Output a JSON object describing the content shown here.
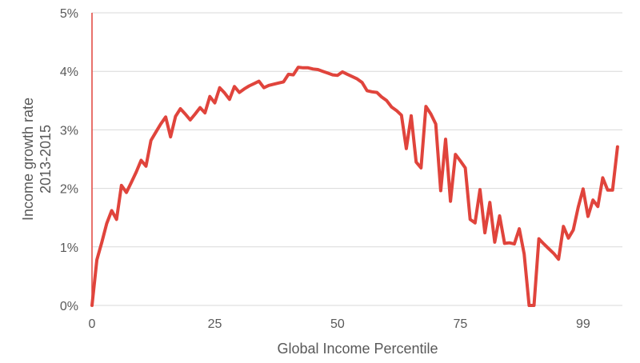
{
  "chart_data": {
    "type": "line",
    "title": "",
    "xlabel": "Global Income Percentile",
    "ylabel_lines": [
      "Income growth rate",
      "2013-2015"
    ],
    "xlim": [
      0,
      108
    ],
    "ylim": [
      0,
      5
    ],
    "grid": true,
    "legend": "none",
    "x_ticks": [
      {
        "value": 0,
        "label": "0"
      },
      {
        "value": 25,
        "label": "25"
      },
      {
        "value": 50,
        "label": "50"
      },
      {
        "value": 75,
        "label": "75"
      },
      {
        "value": 100,
        "label": "99"
      }
    ],
    "y_ticks": [
      {
        "value": 0,
        "label": "0%"
      },
      {
        "value": 1,
        "label": "1%"
      },
      {
        "value": 2,
        "label": "2%"
      },
      {
        "value": 3,
        "label": "3%"
      },
      {
        "value": 4,
        "label": "4%"
      },
      {
        "value": 5,
        "label": "5%"
      }
    ],
    "series": [
      {
        "color": "#e0443c",
        "x": [
          0,
          1,
          2,
          3,
          4,
          5,
          6,
          7,
          8,
          9,
          10,
          11,
          12,
          13,
          14,
          15,
          16,
          17,
          18,
          19,
          20,
          21,
          22,
          23,
          24,
          25,
          26,
          27,
          28,
          29,
          30,
          31,
          32,
          33,
          34,
          35,
          36,
          37,
          38,
          39,
          40,
          41,
          42,
          43,
          44,
          45,
          46,
          47,
          48,
          49,
          50,
          51,
          52,
          53,
          54,
          55,
          56,
          57,
          58,
          59,
          60,
          61,
          62,
          63,
          64,
          65,
          66,
          67,
          68,
          69,
          70,
          71,
          72,
          73,
          74,
          75,
          76,
          77,
          78,
          79,
          80,
          81,
          82,
          83,
          84,
          85,
          86,
          87,
          88,
          89,
          90,
          91,
          92,
          93,
          94,
          95,
          96,
          97,
          98,
          99,
          100,
          101,
          102,
          103,
          104,
          105,
          106,
          107
        ],
        "values": [
          0.0,
          0.78,
          1.08,
          1.4,
          1.62,
          1.47,
          2.05,
          1.93,
          2.1,
          2.28,
          2.48,
          2.38,
          2.82,
          2.96,
          3.1,
          3.22,
          2.88,
          3.23,
          3.36,
          3.27,
          3.17,
          3.27,
          3.38,
          3.29,
          3.57,
          3.46,
          3.72,
          3.63,
          3.52,
          3.74,
          3.64,
          3.7,
          3.75,
          3.79,
          3.83,
          3.72,
          3.76,
          3.78,
          3.8,
          3.82,
          3.95,
          3.94,
          4.07,
          4.06,
          4.06,
          4.04,
          4.03,
          4.0,
          3.97,
          3.94,
          3.93,
          3.99,
          3.95,
          3.91,
          3.87,
          3.81,
          3.67,
          3.65,
          3.64,
          3.56,
          3.5,
          3.39,
          3.33,
          3.25,
          2.68,
          3.24,
          2.45,
          2.35,
          3.4,
          3.27,
          3.1,
          1.96,
          2.84,
          1.78,
          2.58,
          2.47,
          2.35,
          1.47,
          1.41,
          1.98,
          1.24,
          1.76,
          1.08,
          1.53,
          1.06,
          1.07,
          1.05,
          1.31,
          0.88,
          0.0,
          0.0,
          1.14,
          1.05,
          0.97,
          0.89,
          0.79,
          1.35,
          1.15,
          1.29,
          1.68,
          1.99,
          1.52,
          1.8,
          1.69,
          2.18,
          1.97,
          1.97,
          2.71
        ]
      }
    ]
  }
}
